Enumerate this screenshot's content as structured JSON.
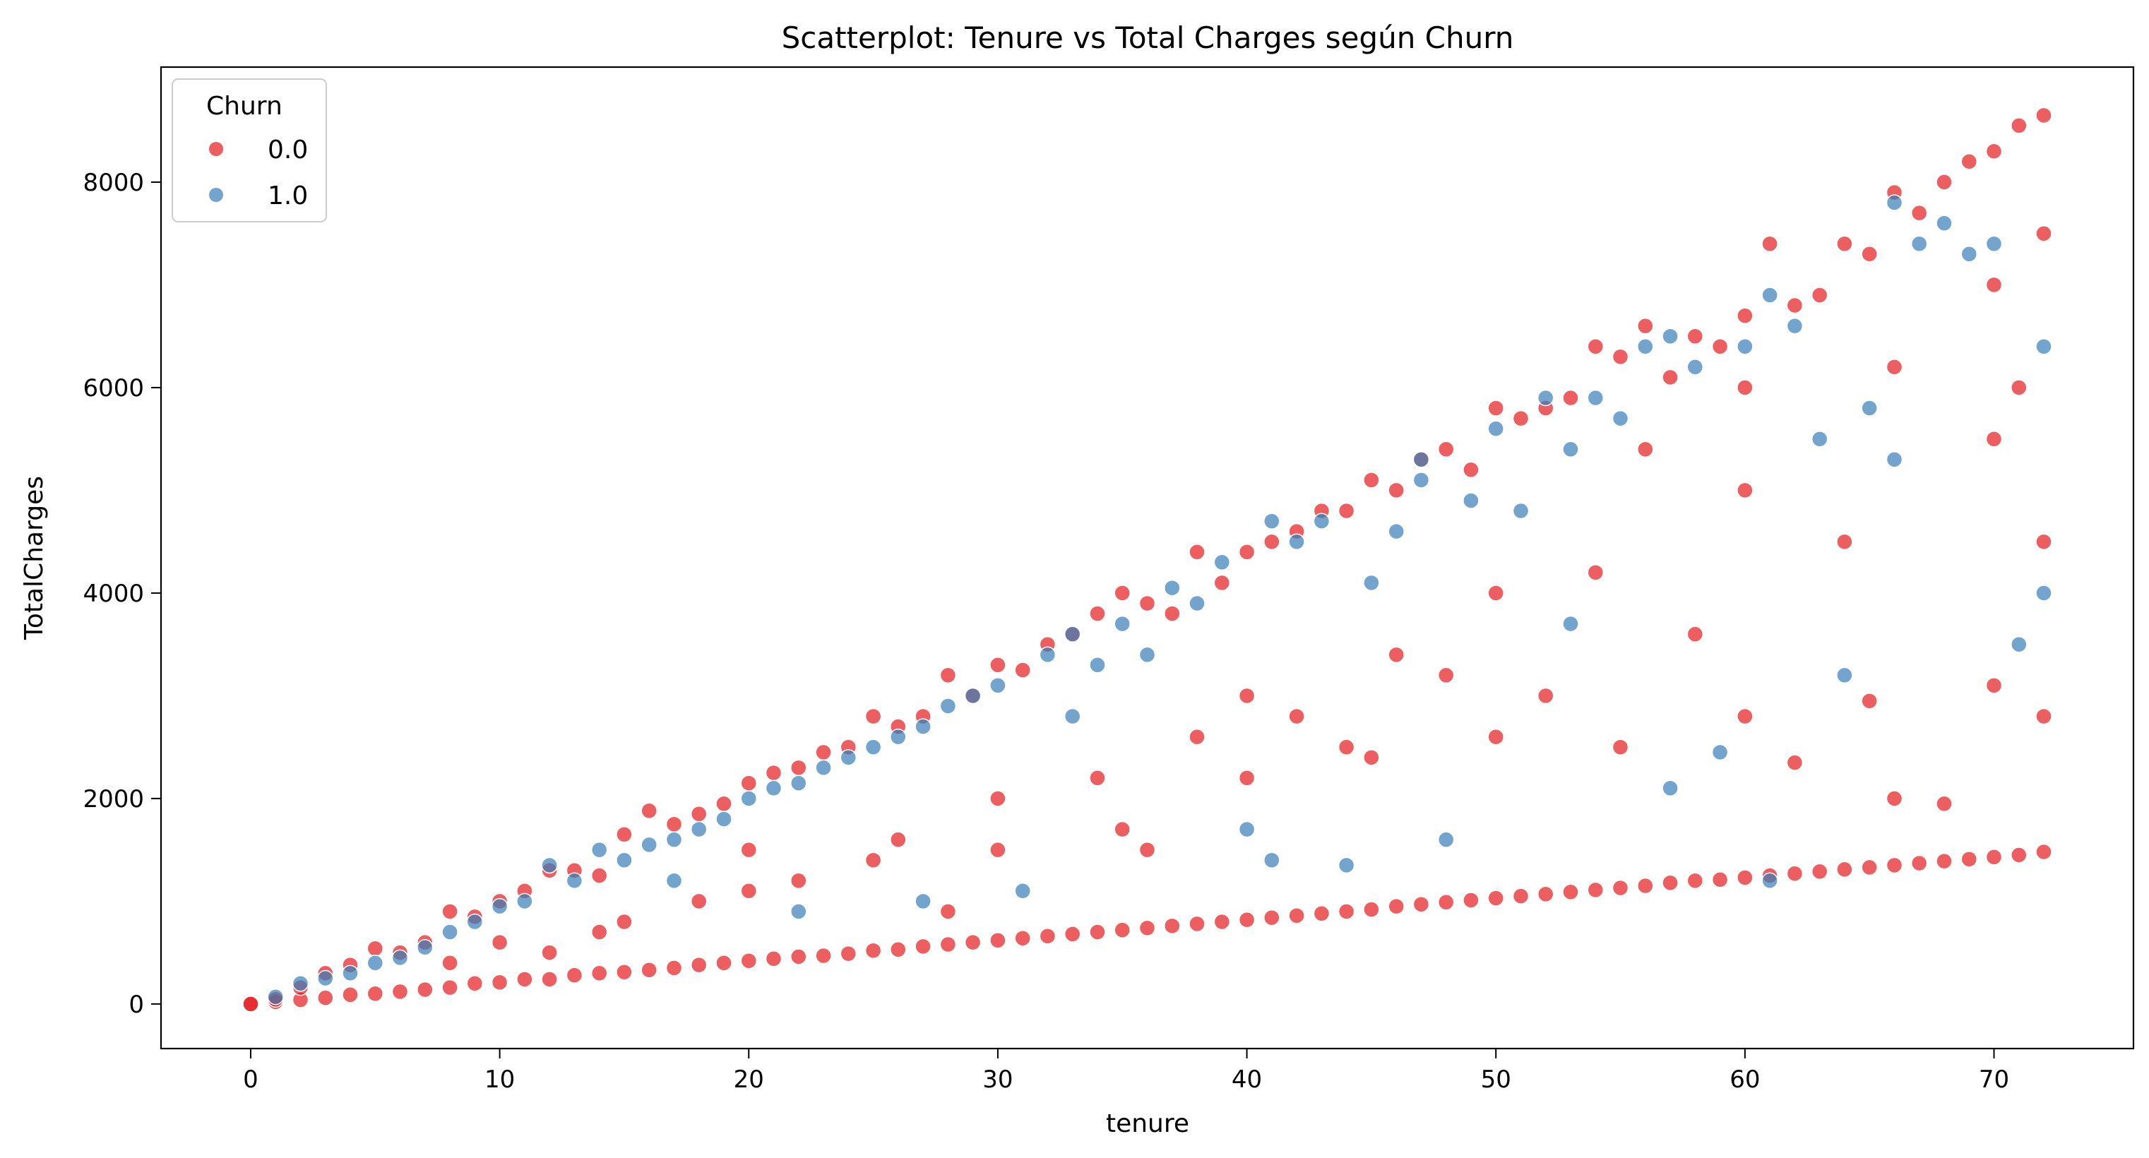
{
  "chart_data": {
    "type": "scatter",
    "title": "Scatterplot: Tenure vs Total Charges según Churn",
    "xlabel": "tenure",
    "ylabel": "TotalCharges",
    "xlim": [
      -3.6,
      75.6
    ],
    "ylim": [
      -434,
      9120
    ],
    "xticks": [
      0,
      10,
      20,
      30,
      40,
      50,
      60,
      70
    ],
    "yticks": [
      0,
      2000,
      4000,
      6000,
      8000
    ],
    "grid": false,
    "legend": {
      "title": "Churn",
      "placement": "top-left",
      "entries": [
        {
          "label": "0.0",
          "color": "#e41a1c"
        },
        {
          "label": "1.0",
          "color": "#377eb8"
        }
      ]
    },
    "series": [
      {
        "name": "0.0",
        "color": "#e41a1c",
        "points": [
          [
            0,
            0
          ],
          [
            0,
            0
          ],
          [
            1,
            20
          ],
          [
            1,
            45
          ],
          [
            2,
            40
          ],
          [
            2,
            160
          ],
          [
            3,
            60
          ],
          [
            3,
            300
          ],
          [
            4,
            90
          ],
          [
            4,
            380
          ],
          [
            5,
            100
          ],
          [
            5,
            540
          ],
          [
            6,
            120
          ],
          [
            6,
            500
          ],
          [
            7,
            140
          ],
          [
            7,
            600
          ],
          [
            8,
            160
          ],
          [
            8,
            900
          ],
          [
            9,
            200
          ],
          [
            9,
            850
          ],
          [
            10,
            210
          ],
          [
            10,
            1000
          ],
          [
            11,
            240
          ],
          [
            11,
            1100
          ],
          [
            12,
            240
          ],
          [
            12,
            1300
          ],
          [
            13,
            280
          ],
          [
            13,
            1300
          ],
          [
            14,
            300
          ],
          [
            14,
            1250
          ],
          [
            15,
            310
          ],
          [
            15,
            1650
          ],
          [
            16,
            330
          ],
          [
            16,
            1880
          ],
          [
            17,
            350
          ],
          [
            17,
            1750
          ],
          [
            18,
            380
          ],
          [
            18,
            1850
          ],
          [
            19,
            400
          ],
          [
            19,
            1950
          ],
          [
            20,
            420
          ],
          [
            20,
            2150
          ],
          [
            21,
            440
          ],
          [
            21,
            2250
          ],
          [
            22,
            460
          ],
          [
            22,
            2300
          ],
          [
            23,
            470
          ],
          [
            23,
            2450
          ],
          [
            24,
            490
          ],
          [
            24,
            2500
          ],
          [
            25,
            520
          ],
          [
            25,
            2800
          ],
          [
            26,
            530
          ],
          [
            26,
            2700
          ],
          [
            27,
            560
          ],
          [
            27,
            2800
          ],
          [
            28,
            580
          ],
          [
            28,
            3200
          ],
          [
            29,
            600
          ],
          [
            29,
            3000
          ],
          [
            30,
            620
          ],
          [
            30,
            3300
          ],
          [
            31,
            640
          ],
          [
            31,
            3250
          ],
          [
            32,
            660
          ],
          [
            32,
            3500
          ],
          [
            33,
            680
          ],
          [
            33,
            3600
          ],
          [
            34,
            700
          ],
          [
            34,
            3800
          ],
          [
            35,
            720
          ],
          [
            35,
            4000
          ],
          [
            36,
            740
          ],
          [
            36,
            3900
          ],
          [
            37,
            760
          ],
          [
            37,
            3800
          ],
          [
            38,
            780
          ],
          [
            38,
            4400
          ],
          [
            39,
            800
          ],
          [
            39,
            4100
          ],
          [
            40,
            820
          ],
          [
            40,
            4400
          ],
          [
            41,
            840
          ],
          [
            41,
            4500
          ],
          [
            42,
            860
          ],
          [
            42,
            4600
          ],
          [
            43,
            880
          ],
          [
            43,
            4800
          ],
          [
            44,
            900
          ],
          [
            44,
            4800
          ],
          [
            45,
            920
          ],
          [
            45,
            5100
          ],
          [
            46,
            950
          ],
          [
            46,
            5000
          ],
          [
            47,
            970
          ],
          [
            47,
            5300
          ],
          [
            48,
            990
          ],
          [
            48,
            5400
          ],
          [
            49,
            1010
          ],
          [
            49,
            5200
          ],
          [
            50,
            1030
          ],
          [
            50,
            5800
          ],
          [
            51,
            1050
          ],
          [
            51,
            5700
          ],
          [
            52,
            1070
          ],
          [
            52,
            5800
          ],
          [
            53,
            1090
          ],
          [
            53,
            5900
          ],
          [
            54,
            1110
          ],
          [
            54,
            6400
          ],
          [
            55,
            1130
          ],
          [
            55,
            6300
          ],
          [
            56,
            1150
          ],
          [
            56,
            6600
          ],
          [
            57,
            1180
          ],
          [
            57,
            6100
          ],
          [
            58,
            1200
          ],
          [
            58,
            6500
          ],
          [
            59,
            1210
          ],
          [
            59,
            6400
          ],
          [
            60,
            1230
          ],
          [
            60,
            6700
          ],
          [
            61,
            1250
          ],
          [
            61,
            7400
          ],
          [
            62,
            1270
          ],
          [
            62,
            6800
          ],
          [
            63,
            1290
          ],
          [
            63,
            6900
          ],
          [
            64,
            1310
          ],
          [
            64,
            7400
          ],
          [
            65,
            1330
          ],
          [
            65,
            7300
          ],
          [
            66,
            1350
          ],
          [
            66,
            7900
          ],
          [
            67,
            1370
          ],
          [
            67,
            7700
          ],
          [
            68,
            1390
          ],
          [
            68,
            8000
          ],
          [
            69,
            1410
          ],
          [
            69,
            8200
          ],
          [
            70,
            1430
          ],
          [
            70,
            8300
          ],
          [
            71,
            1450
          ],
          [
            71,
            8550
          ],
          [
            72,
            1480
          ],
          [
            72,
            8650
          ],
          [
            15,
            800
          ],
          [
            20,
            1100
          ],
          [
            25,
            1400
          ],
          [
            30,
            1500
          ],
          [
            35,
            1700
          ],
          [
            40,
            2200
          ],
          [
            45,
            2400
          ],
          [
            50,
            2600
          ],
          [
            55,
            2500
          ],
          [
            60,
            2800
          ],
          [
            65,
            2950
          ],
          [
            70,
            3100
          ],
          [
            70,
            5500
          ],
          [
            60,
            5000
          ],
          [
            50,
            4000
          ],
          [
            40,
            3000
          ],
          [
            30,
            2000
          ],
          [
            20,
            1500
          ],
          [
            10,
            600
          ],
          [
            62,
            2350
          ],
          [
            66,
            2000
          ],
          [
            68,
            1950
          ],
          [
            72,
            2800
          ],
          [
            58,
            3600
          ],
          [
            44,
            2500
          ],
          [
            36,
            1500
          ],
          [
            28,
            900
          ],
          [
            48,
            3200
          ],
          [
            54,
            4200
          ],
          [
            64,
            4500
          ],
          [
            70,
            7000
          ],
          [
            71,
            6000
          ],
          [
            72,
            4500
          ],
          [
            72,
            7500
          ],
          [
            66,
            6200
          ],
          [
            60,
            6000
          ],
          [
            56,
            5400
          ],
          [
            52,
            3000
          ],
          [
            46,
            3400
          ],
          [
            42,
            2800
          ],
          [
            38,
            2600
          ],
          [
            34,
            2200
          ],
          [
            26,
            1600
          ],
          [
            22,
            1200
          ],
          [
            18,
            1000
          ],
          [
            14,
            700
          ],
          [
            12,
            500
          ],
          [
            8,
            400
          ]
        ]
      },
      {
        "name": "1.0",
        "color": "#377eb8",
        "points": [
          [
            1,
            70
          ],
          [
            2,
            200
          ],
          [
            3,
            250
          ],
          [
            4,
            300
          ],
          [
            5,
            400
          ],
          [
            6,
            450
          ],
          [
            7,
            550
          ],
          [
            8,
            700
          ],
          [
            9,
            800
          ],
          [
            10,
            950
          ],
          [
            11,
            1000
          ],
          [
            12,
            1350
          ],
          [
            13,
            1200
          ],
          [
            14,
            1500
          ],
          [
            15,
            1400
          ],
          [
            16,
            1550
          ],
          [
            17,
            1600
          ],
          [
            18,
            1700
          ],
          [
            19,
            1800
          ],
          [
            20,
            2000
          ],
          [
            21,
            2100
          ],
          [
            22,
            2150
          ],
          [
            23,
            2300
          ],
          [
            24,
            2400
          ],
          [
            25,
            2500
          ],
          [
            26,
            2600
          ],
          [
            27,
            2700
          ],
          [
            28,
            2900
          ],
          [
            29,
            3000
          ],
          [
            30,
            3100
          ],
          [
            31,
            1100
          ],
          [
            32,
            3400
          ],
          [
            33,
            3600
          ],
          [
            34,
            3300
          ],
          [
            35,
            3700
          ],
          [
            36,
            3400
          ],
          [
            37,
            4050
          ],
          [
            38,
            3900
          ],
          [
            39,
            4300
          ],
          [
            40,
            1700
          ],
          [
            41,
            4700
          ],
          [
            42,
            4500
          ],
          [
            43,
            4700
          ],
          [
            44,
            1350
          ],
          [
            45,
            4100
          ],
          [
            46,
            4600
          ],
          [
            47,
            5100
          ],
          [
            48,
            1600
          ],
          [
            49,
            4900
          ],
          [
            50,
            5600
          ],
          [
            51,
            4800
          ],
          [
            52,
            5900
          ],
          [
            53,
            5400
          ],
          [
            54,
            5900
          ],
          [
            55,
            5700
          ],
          [
            56,
            6400
          ],
          [
            57,
            6500
          ],
          [
            58,
            6200
          ],
          [
            59,
            2450
          ],
          [
            60,
            6400
          ],
          [
            61,
            1200
          ],
          [
            62,
            6600
          ],
          [
            63,
            5500
          ],
          [
            64,
            3200
          ],
          [
            65,
            5800
          ],
          [
            66,
            5300
          ],
          [
            67,
            7400
          ],
          [
            68,
            7600
          ],
          [
            69,
            7300
          ],
          [
            70,
            7400
          ],
          [
            71,
            3500
          ],
          [
            72,
            6400
          ],
          [
            57,
            2100
          ],
          [
            47,
            5300
          ],
          [
            27,
            1000
          ],
          [
            17,
            1200
          ],
          [
            22,
            900
          ],
          [
            33,
            2800
          ],
          [
            41,
            1400
          ],
          [
            53,
            3700
          ],
          [
            61,
            6900
          ],
          [
            66,
            7800
          ],
          [
            72,
            4000
          ]
        ]
      }
    ]
  }
}
